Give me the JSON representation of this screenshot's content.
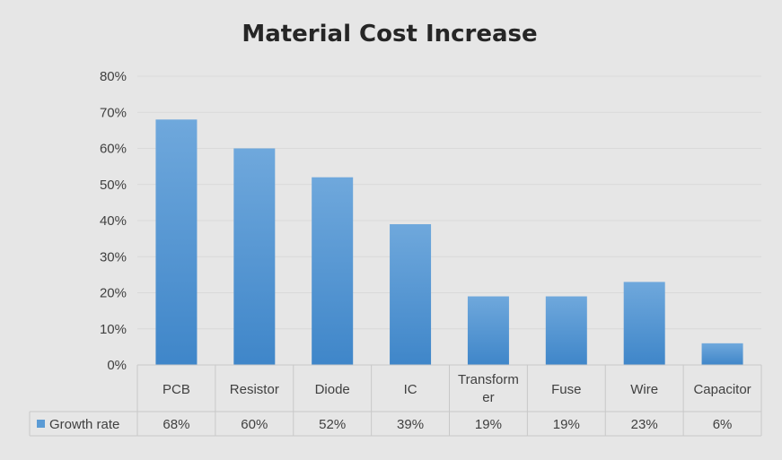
{
  "chart_data": {
    "type": "bar",
    "title": "Material Cost Increase",
    "categories": [
      "PCB",
      "Resistor",
      "Diode",
      "IC",
      "Transformer",
      "Fuse",
      "Wire",
      "Capacitor"
    ],
    "category_display": [
      [
        "PCB"
      ],
      [
        "Resistor"
      ],
      [
        "Diode"
      ],
      [
        "IC"
      ],
      [
        "Transform",
        "er"
      ],
      [
        "Fuse"
      ],
      [
        "Wire"
      ],
      [
        "Capacitor"
      ]
    ],
    "series": [
      {
        "name": "Growth rate",
        "values": [
          68,
          60,
          52,
          39,
          19,
          19,
          23,
          6
        ],
        "color": "#5b9bd5"
      }
    ],
    "value_labels": [
      "68%",
      "60%",
      "52%",
      "39%",
      "19%",
      "19%",
      "23%",
      "6%"
    ],
    "ylim": [
      0,
      80
    ],
    "yticks": [
      "0%",
      "10%",
      "20%",
      "30%",
      "40%",
      "50%",
      "60%",
      "70%",
      "80%"
    ],
    "grid": true,
    "data_table": true
  }
}
